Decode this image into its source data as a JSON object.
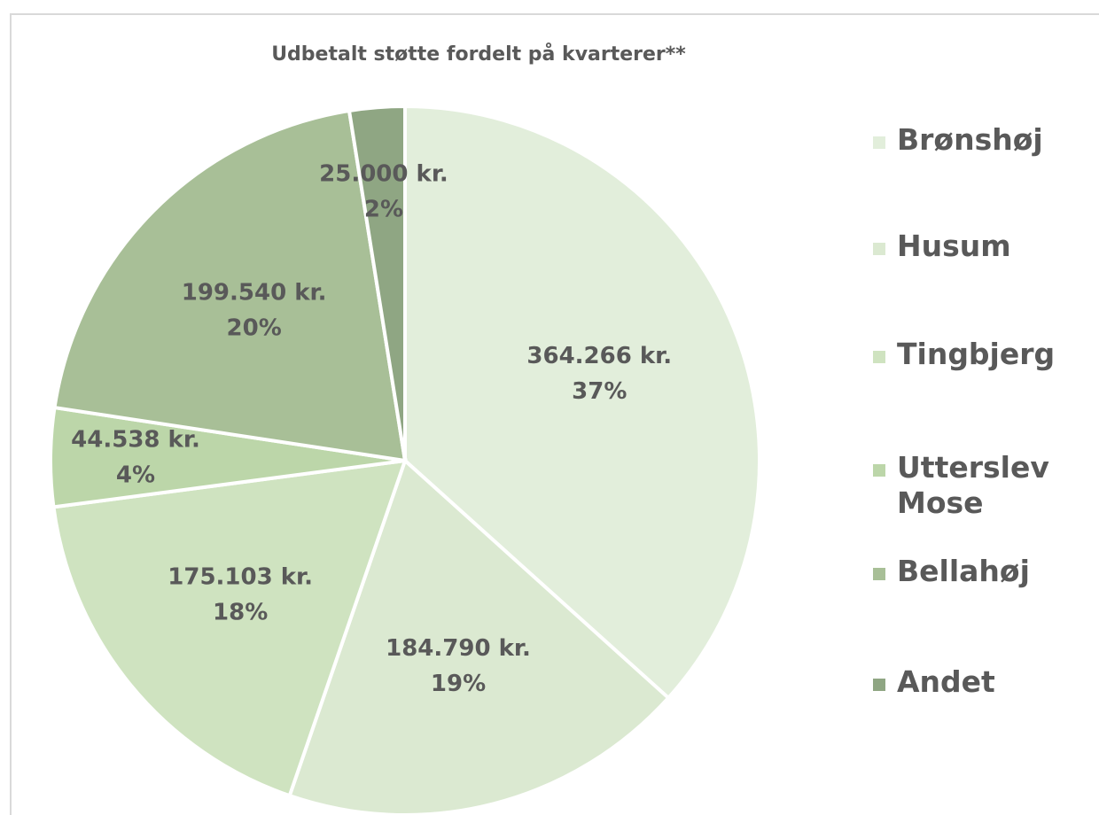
{
  "chart_data": {
    "type": "pie",
    "title": "Udbetalt støtte fordelt på kvarterer**",
    "categories": [
      "Brønshøj",
      "Husum",
      "Tingbjerg",
      "Utterslev Mose",
      "Bellahøj",
      "Andet"
    ],
    "values": [
      364266,
      184790,
      175103,
      44538,
      199540,
      25000
    ],
    "value_labels": [
      "364.266 kr.",
      "184.790 kr.",
      "175.103 kr.",
      "44.538 kr.",
      "199.540 kr.",
      "25.000 kr."
    ],
    "percent_labels": [
      "37%",
      "19%",
      "18%",
      "4%",
      "20%",
      "2%"
    ],
    "colors": [
      "#e2eedb",
      "#dbe9d1",
      "#cfe3c0",
      "#bcd6a9",
      "#a8bf97",
      "#8fa683"
    ],
    "legend": "right"
  }
}
